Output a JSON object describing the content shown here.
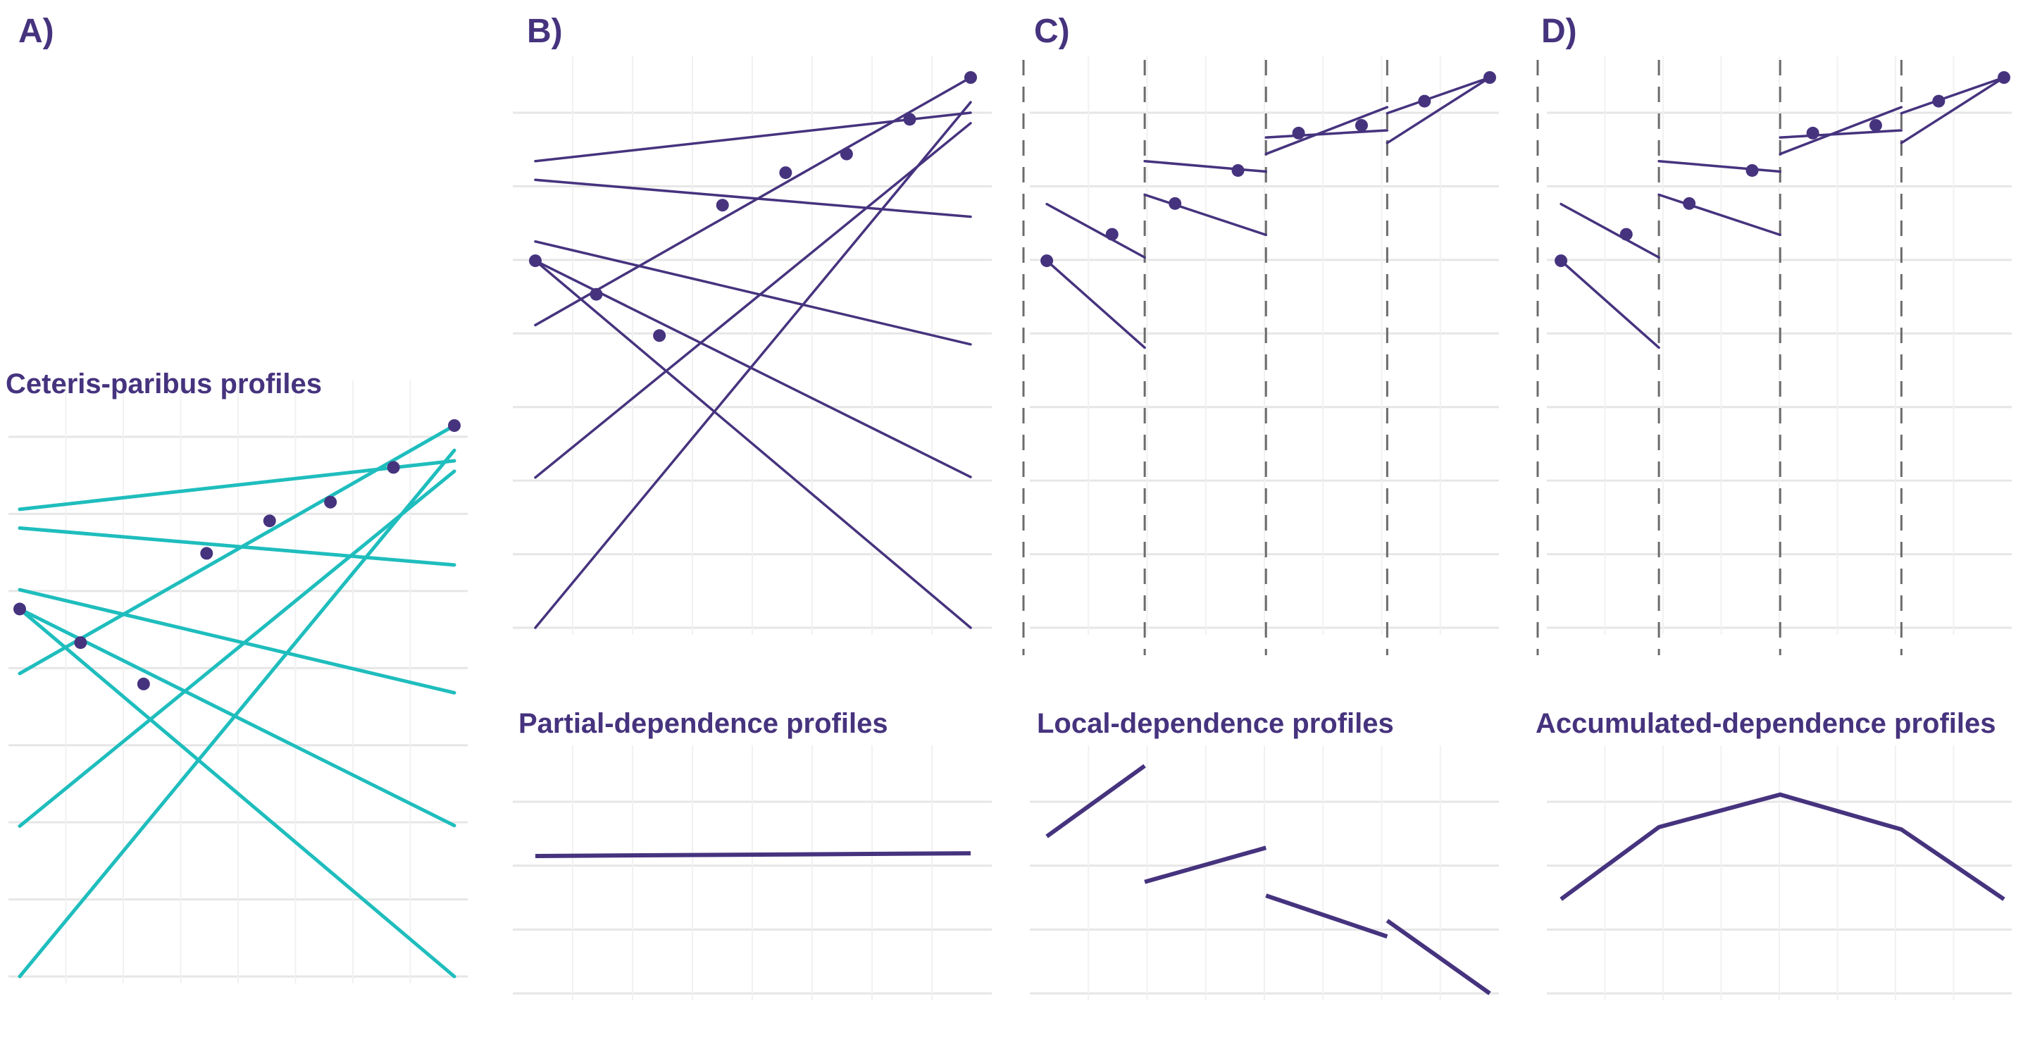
{
  "figure": {
    "colors": {
      "purple": "#46337e",
      "teal": "#1fbdbd",
      "grid_major": "#e6e6e6",
      "grid_minor": "#f1f1f1",
      "interval_divider": "#6b6b6b"
    },
    "labels": {
      "a": "A)",
      "b": "B)",
      "c": "C)",
      "d": "D)"
    },
    "titles": {
      "ceteris_paribus": "Ceteris-paribus profiles",
      "partial_dependence": "Partial-dependence profiles",
      "local_dependence": "Local-dependence profiles",
      "accumulated_dependence": "Accumulated-dependence profiles"
    }
  },
  "chart_data": [
    {
      "panel": "A",
      "type": "line",
      "title": "Ceteris-paribus profiles",
      "x_range": [
        0,
        1
      ],
      "y_range": [
        0,
        1
      ],
      "grid": true,
      "line_color": "#1fbdbd",
      "point_color": "#46337e",
      "series": [
        {
          "start": [
            0,
            0.667
          ],
          "end": [
            1,
            0.0
          ],
          "point": [
            0,
            0.667
          ]
        },
        {
          "start": [
            0,
            0.667
          ],
          "end": [
            1,
            0.274
          ],
          "point": [
            0.14,
            0.606
          ]
        },
        {
          "start": [
            0,
            0.702
          ],
          "end": [
            1,
            0.515
          ],
          "point": [
            0.285,
            0.531
          ]
        },
        {
          "start": [
            0,
            0.814
          ],
          "end": [
            1,
            0.747
          ],
          "point": [
            0.43,
            0.768
          ]
        },
        {
          "start": [
            0,
            0.0
          ],
          "end": [
            1,
            0.955
          ],
          "point": [
            0.575,
            0.827
          ]
        },
        {
          "start": [
            0,
            0.273
          ],
          "end": [
            1,
            0.917
          ],
          "point": [
            0.715,
            0.861
          ]
        },
        {
          "start": [
            0,
            0.55
          ],
          "end": [
            1,
            1.0
          ],
          "point": [
            1,
            1.0
          ]
        },
        {
          "start": [
            0,
            0.848
          ],
          "end": [
            1,
            0.936
          ],
          "point": [
            0.86,
            0.924
          ]
        }
      ]
    },
    {
      "panel": "B",
      "type": "line",
      "x_range": [
        0,
        1
      ],
      "y_range": [
        0,
        1
      ],
      "grid": true,
      "line_color": "#46337e",
      "series": [
        {
          "start": [
            0,
            0.667
          ],
          "end": [
            1,
            0.0
          ],
          "point": [
            0,
            0.667
          ]
        },
        {
          "start": [
            0,
            0.667
          ],
          "end": [
            1,
            0.274
          ],
          "point": [
            0.14,
            0.606
          ]
        },
        {
          "start": [
            0,
            0.702
          ],
          "end": [
            1,
            0.515
          ],
          "point": [
            0.285,
            0.531
          ]
        },
        {
          "start": [
            0,
            0.814
          ],
          "end": [
            1,
            0.747
          ],
          "point": [
            0.43,
            0.768
          ]
        },
        {
          "start": [
            0,
            0.0
          ],
          "end": [
            1,
            0.955
          ],
          "point": [
            0.575,
            0.827
          ]
        },
        {
          "start": [
            0,
            0.273
          ],
          "end": [
            1,
            0.917
          ],
          "point": [
            0.715,
            0.861
          ]
        },
        {
          "start": [
            0,
            0.55
          ],
          "end": [
            1,
            1.0
          ],
          "point": [
            1,
            1.0
          ]
        },
        {
          "start": [
            0,
            0.848
          ],
          "end": [
            1,
            0.936
          ],
          "point": [
            0.86,
            0.924
          ]
        }
      ],
      "profile_title": "Partial-dependence profiles",
      "profile": {
        "type": "line",
        "segments": [
          [
            [
              0,
              0.5
            ],
            [
              1,
              0.49
            ]
          ]
        ]
      }
    },
    {
      "panel": "C",
      "type": "line",
      "x_range": [
        0,
        1
      ],
      "y_range": [
        0,
        1
      ],
      "grid": true,
      "interval_breaks": [
        0,
        0.26,
        0.52,
        0.78
      ],
      "line_color": "#46337e",
      "series": [
        {
          "start": [
            0.05,
            0.667
          ],
          "end": [
            0.26,
            0.509
          ],
          "point": [
            0.05,
            0.667
          ]
        },
        {
          "start": [
            0.05,
            0.77
          ],
          "end": [
            0.26,
            0.673
          ],
          "point": [
            0.19,
            0.715
          ]
        },
        {
          "start": [
            0.26,
            0.787
          ],
          "end": [
            0.52,
            0.714
          ],
          "point": [
            0.325,
            0.771
          ]
        },
        {
          "start": [
            0.26,
            0.848
          ],
          "end": [
            0.52,
            0.829
          ],
          "point": [
            0.46,
            0.831
          ]
        },
        {
          "start": [
            0.52,
            0.861
          ],
          "end": [
            0.78,
            0.946
          ],
          "point": [
            0.59,
            0.899
          ]
        },
        {
          "start": [
            0.52,
            0.891
          ],
          "end": [
            0.78,
            0.904
          ],
          "point": [
            0.725,
            0.913
          ]
        },
        {
          "start": [
            0.78,
            0.881
          ],
          "end": [
            1,
            1.0
          ],
          "point": [
            1,
            1.0
          ]
        },
        {
          "start": [
            0.78,
            0.935
          ],
          "end": [
            1,
            1.0
          ],
          "point": [
            0.86,
            0.957
          ]
        }
      ],
      "profile_title": "Local-dependence profiles",
      "profile": {
        "type": "line",
        "segments": [
          [
            [
              0.05,
              0.31
            ],
            [
              0.26,
              0.0
            ]
          ],
          [
            [
              0.26,
              0.51
            ],
            [
              0.52,
              0.36
            ]
          ],
          [
            [
              0.52,
              0.57
            ],
            [
              0.78,
              0.75
            ]
          ],
          [
            [
              0.78,
              0.68
            ],
            [
              1,
              1.0
            ]
          ]
        ]
      }
    },
    {
      "panel": "D",
      "type": "line",
      "x_range": [
        0,
        1
      ],
      "y_range": [
        0,
        1
      ],
      "grid": true,
      "interval_breaks": [
        0,
        0.26,
        0.52,
        0.78
      ],
      "line_color": "#46337e",
      "series": [
        {
          "start": [
            0.05,
            0.667
          ],
          "end": [
            0.26,
            0.509
          ],
          "point": [
            0.05,
            0.667
          ]
        },
        {
          "start": [
            0.05,
            0.77
          ],
          "end": [
            0.26,
            0.673
          ],
          "point": [
            0.19,
            0.715
          ]
        },
        {
          "start": [
            0.26,
            0.787
          ],
          "end": [
            0.52,
            0.714
          ],
          "point": [
            0.325,
            0.771
          ]
        },
        {
          "start": [
            0.26,
            0.848
          ],
          "end": [
            0.52,
            0.829
          ],
          "point": [
            0.46,
            0.831
          ]
        },
        {
          "start": [
            0.52,
            0.861
          ],
          "end": [
            0.78,
            0.946
          ],
          "point": [
            0.59,
            0.899
          ]
        },
        {
          "start": [
            0.52,
            0.891
          ],
          "end": [
            0.78,
            0.904
          ],
          "point": [
            0.725,
            0.913
          ]
        },
        {
          "start": [
            0.78,
            0.881
          ],
          "end": [
            1,
            1.0
          ],
          "point": [
            1,
            1.0
          ]
        },
        {
          "start": [
            0.78,
            0.935
          ],
          "end": [
            1,
            1.0
          ],
          "point": [
            0.86,
            0.957
          ]
        }
      ],
      "profile_title": "Accumulated-dependence profiles",
      "profile": {
        "type": "line",
        "segments": [
          [
            [
              0.05,
              0.61
            ],
            [
              0.26,
              0.3
            ],
            [
              0.52,
              0.16
            ],
            [
              0.78,
              0.31
            ],
            [
              1,
              0.61
            ]
          ]
        ]
      }
    }
  ]
}
